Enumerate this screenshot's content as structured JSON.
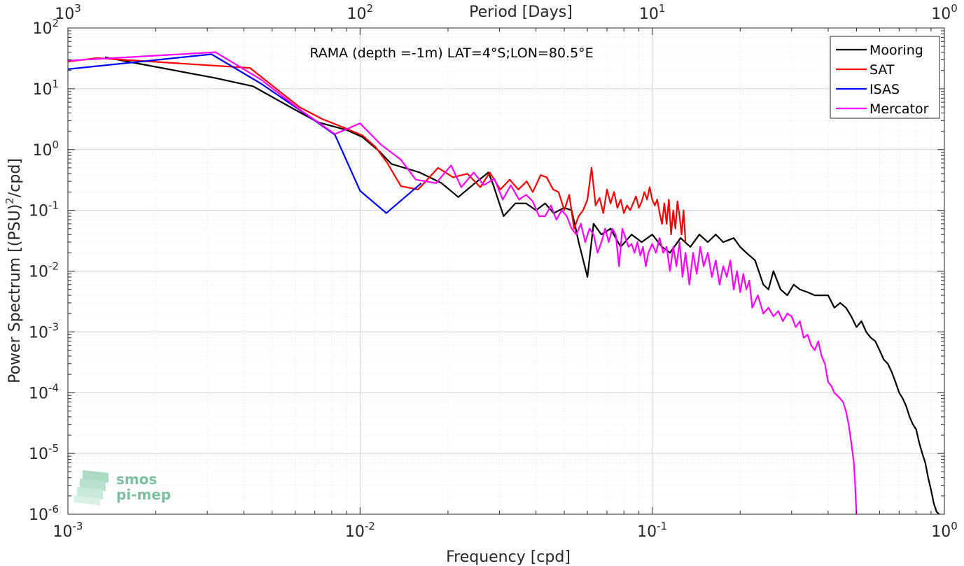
{
  "chart_data": {
    "type": "line",
    "title": "RAMA (depth =-1m) LAT=4°S;LON=80.5°E",
    "xlabel": "Frequency [cpd]",
    "ylabel_main": "Power Spectrum [(PSU)",
    "ylabel_sup": "2",
    "ylabel_tail": "/cpd]",
    "x2label": "Period [Days]",
    "xscale": "log",
    "yscale": "log",
    "xlim": [
      0.001,
      1
    ],
    "ylim": [
      1e-06,
      100
    ],
    "grid": true,
    "legend_position": "top-right",
    "x_ticks": [
      {
        "value": 0.001,
        "base": "10",
        "exp": "-3"
      },
      {
        "value": 0.01,
        "base": "10",
        "exp": "-2"
      },
      {
        "value": 0.1,
        "base": "10",
        "exp": "-1"
      },
      {
        "value": 1,
        "base": "10",
        "exp": "0"
      }
    ],
    "x2_ticks": [
      {
        "value": 0.001,
        "base": "10",
        "exp": "3"
      },
      {
        "value": 0.01,
        "base": "10",
        "exp": "2"
      },
      {
        "value": 0.1,
        "base": "10",
        "exp": "1"
      },
      {
        "value": 1,
        "base": "10",
        "exp": "0"
      }
    ],
    "y_ticks": [
      {
        "value": 100,
        "base": "10",
        "exp": "2"
      },
      {
        "value": 10,
        "base": "10",
        "exp": "1"
      },
      {
        "value": 1,
        "base": "10",
        "exp": "0"
      },
      {
        "value": 0.1,
        "base": "10",
        "exp": "-1"
      },
      {
        "value": 0.01,
        "base": "10",
        "exp": "-2"
      },
      {
        "value": 0.001,
        "base": "10",
        "exp": "-3"
      },
      {
        "value": 0.0001,
        "base": "10",
        "exp": "-4"
      },
      {
        "value": 1e-05,
        "base": "10",
        "exp": "-5"
      },
      {
        "value": 1e-06,
        "base": "10",
        "exp": "-6"
      }
    ],
    "series": [
      {
        "name": "Mooring",
        "color": "#000000",
        "points": [
          [
            0.00134,
            33
          ],
          [
            0.0016,
            28
          ],
          [
            0.0032,
            15
          ],
          [
            0.0043,
            11
          ],
          [
            0.006,
            4.5
          ],
          [
            0.0072,
            2.8
          ],
          [
            0.009,
            2.1
          ],
          [
            0.0102,
            1.6
          ],
          [
            0.0116,
            0.95
          ],
          [
            0.0128,
            0.58
          ],
          [
            0.0142,
            0.5
          ],
          [
            0.016,
            0.42
          ],
          [
            0.019,
            0.28
          ],
          [
            0.0217,
            0.165
          ],
          [
            0.0245,
            0.27
          ],
          [
            0.0275,
            0.42
          ],
          [
            0.0285,
            0.27
          ],
          [
            0.031,
            0.08
          ],
          [
            0.034,
            0.13
          ],
          [
            0.037,
            0.13
          ],
          [
            0.04,
            0.1
          ],
          [
            0.043,
            0.13
          ],
          [
            0.046,
            0.09
          ],
          [
            0.05,
            0.11
          ],
          [
            0.053,
            0.1
          ],
          [
            0.056,
            0.03
          ],
          [
            0.06,
            0.008
          ],
          [
            0.063,
            0.06
          ],
          [
            0.067,
            0.04
          ],
          [
            0.072,
            0.05
          ],
          [
            0.078,
            0.025
          ],
          [
            0.085,
            0.04
          ],
          [
            0.092,
            0.03
          ],
          [
            0.1,
            0.04
          ],
          [
            0.108,
            0.025
          ],
          [
            0.115,
            0.02
          ],
          [
            0.125,
            0.035
          ],
          [
            0.135,
            0.025
          ],
          [
            0.145,
            0.04
          ],
          [
            0.155,
            0.03
          ],
          [
            0.165,
            0.04
          ],
          [
            0.175,
            0.03
          ],
          [
            0.19,
            0.035
          ],
          [
            0.2,
            0.025
          ],
          [
            0.21,
            0.02
          ],
          [
            0.225,
            0.015
          ],
          [
            0.24,
            0.006
          ],
          [
            0.25,
            0.005
          ],
          [
            0.26,
            0.01
          ],
          [
            0.275,
            0.005
          ],
          [
            0.29,
            0.004
          ],
          [
            0.305,
            0.006
          ],
          [
            0.32,
            0.005
          ],
          [
            0.34,
            0.0045
          ],
          [
            0.36,
            0.004
          ],
          [
            0.38,
            0.004
          ],
          [
            0.4,
            0.004
          ],
          [
            0.42,
            0.0025
          ],
          [
            0.44,
            0.003
          ],
          [
            0.46,
            0.0025
          ],
          [
            0.48,
            0.0018
          ],
          [
            0.5,
            0.0012
          ],
          [
            0.52,
            0.0015
          ],
          [
            0.54,
            0.001
          ],
          [
            0.56,
            0.0008
          ],
          [
            0.58,
            0.0007
          ],
          [
            0.6,
            0.0005
          ],
          [
            0.62,
            0.00035
          ],
          [
            0.64,
            0.0003
          ],
          [
            0.66,
            0.00022
          ],
          [
            0.68,
            0.00015
          ],
          [
            0.7,
            0.0001
          ],
          [
            0.72,
            8e-05
          ],
          [
            0.74,
            6e-05
          ],
          [
            0.76,
            4e-05
          ],
          [
            0.78,
            3e-05
          ],
          [
            0.8,
            2.5e-05
          ],
          [
            0.82,
            1.5e-05
          ],
          [
            0.84,
            1e-05
          ],
          [
            0.86,
            7e-06
          ],
          [
            0.88,
            4e-06
          ],
          [
            0.9,
            2.5e-06
          ],
          [
            0.92,
            1.5e-06
          ],
          [
            0.94,
            1.1e-06
          ],
          [
            0.96,
            1e-06
          ]
        ]
      },
      {
        "name": "SAT",
        "color": "#ff0000",
        "points": [
          [
            0.001,
            28
          ],
          [
            0.00126,
            32
          ],
          [
            0.0042,
            22
          ],
          [
            0.0062,
            5
          ],
          [
            0.0074,
            3.2
          ],
          [
            0.009,
            2.2
          ],
          [
            0.0102,
            1.7
          ],
          [
            0.0113,
            1.1
          ],
          [
            0.0124,
            0.6
          ],
          [
            0.0138,
            0.25
          ],
          [
            0.0158,
            0.22
          ],
          [
            0.0185,
            0.5
          ],
          [
            0.0208,
            0.35
          ],
          [
            0.0233,
            0.4
          ],
          [
            0.0258,
            0.24
          ],
          [
            0.0278,
            0.42
          ],
          [
            0.0302,
            0.22
          ],
          [
            0.0325,
            0.32
          ],
          [
            0.0348,
            0.22
          ],
          [
            0.0372,
            0.3
          ],
          [
            0.039,
            0.2
          ],
          [
            0.0415,
            0.38
          ],
          [
            0.0435,
            0.35
          ],
          [
            0.0458,
            0.22
          ],
          [
            0.0478,
            0.2
          ],
          [
            0.05,
            0.1
          ],
          [
            0.052,
            0.18
          ],
          [
            0.054,
            0.05
          ],
          [
            0.056,
            0.08
          ],
          [
            0.058,
            0.1
          ],
          [
            0.06,
            0.15
          ],
          [
            0.062,
            0.5
          ],
          [
            0.064,
            0.12
          ],
          [
            0.066,
            0.16
          ],
          [
            0.068,
            0.09
          ],
          [
            0.07,
            0.22
          ],
          [
            0.072,
            0.13
          ],
          [
            0.074,
            0.2
          ],
          [
            0.076,
            0.11
          ],
          [
            0.078,
            0.15
          ],
          [
            0.08,
            0.09
          ],
          [
            0.082,
            0.12
          ],
          [
            0.084,
            0.1
          ],
          [
            0.086,
            0.13
          ],
          [
            0.088,
            0.17
          ],
          [
            0.09,
            0.11
          ],
          [
            0.092,
            0.14
          ],
          [
            0.094,
            0.2
          ],
          [
            0.096,
            0.15
          ],
          [
            0.098,
            0.24
          ],
          [
            0.1,
            0.15
          ],
          [
            0.102,
            0.12
          ],
          [
            0.104,
            0.15
          ],
          [
            0.106,
            0.09
          ],
          [
            0.108,
            0.06
          ],
          [
            0.11,
            0.13
          ],
          [
            0.112,
            0.06
          ],
          [
            0.114,
            0.15
          ],
          [
            0.116,
            0.04
          ],
          [
            0.118,
            0.1
          ],
          [
            0.12,
            0.05
          ],
          [
            0.122,
            0.14
          ],
          [
            0.124,
            0.08
          ],
          [
            0.126,
            0.04
          ],
          [
            0.128,
            0.1
          ],
          [
            0.13,
            0.03
          ]
        ]
      },
      {
        "name": "ISAS",
        "color": "#0000ff",
        "points": [
          [
            0.001,
            21
          ],
          [
            0.0031,
            37
          ],
          [
            0.0046,
            12
          ],
          [
            0.0062,
            4.5
          ],
          [
            0.0082,
            1.75
          ],
          [
            0.01,
            0.21
          ],
          [
            0.0123,
            0.09
          ],
          [
            0.0162,
            0.28
          ]
        ]
      },
      {
        "name": "Mercator",
        "color": "#ff00ff",
        "points": [
          [
            0.001,
            29
          ],
          [
            0.0032,
            40
          ],
          [
            0.0046,
            14
          ],
          [
            0.0062,
            4.6
          ],
          [
            0.0082,
            1.8
          ],
          [
            0.01,
            2.7
          ],
          [
            0.0118,
            1.2
          ],
          [
            0.0138,
            0.68
          ],
          [
            0.0155,
            0.32
          ],
          [
            0.0182,
            0.28
          ],
          [
            0.0205,
            0.55
          ],
          [
            0.0222,
            0.24
          ],
          [
            0.0245,
            0.42
          ],
          [
            0.0265,
            0.26
          ],
          [
            0.0288,
            0.33
          ],
          [
            0.0308,
            0.15
          ],
          [
            0.0328,
            0.26
          ],
          [
            0.035,
            0.15
          ],
          [
            0.037,
            0.18
          ],
          [
            0.039,
            0.14
          ],
          [
            0.041,
            0.08
          ],
          [
            0.043,
            0.08
          ],
          [
            0.045,
            0.12
          ],
          [
            0.047,
            0.07
          ],
          [
            0.049,
            0.1
          ],
          [
            0.051,
            0.08
          ],
          [
            0.053,
            0.05
          ],
          [
            0.055,
            0.04
          ],
          [
            0.057,
            0.06
          ],
          [
            0.059,
            0.03
          ],
          [
            0.061,
            0.05
          ],
          [
            0.063,
            0.04
          ],
          [
            0.065,
            0.02
          ],
          [
            0.067,
            0.03
          ],
          [
            0.069,
            0.05
          ],
          [
            0.071,
            0.03
          ],
          [
            0.073,
            0.05
          ],
          [
            0.075,
            0.04
          ],
          [
            0.077,
            0.012
          ],
          [
            0.079,
            0.05
          ],
          [
            0.081,
            0.035
          ],
          [
            0.083,
            0.025
          ],
          [
            0.085,
            0.028
          ],
          [
            0.087,
            0.02
          ],
          [
            0.089,
            0.03
          ],
          [
            0.091,
            0.018
          ],
          [
            0.093,
            0.025
          ],
          [
            0.095,
            0.012
          ],
          [
            0.097,
            0.02
          ],
          [
            0.1,
            0.028
          ],
          [
            0.103,
            0.02
          ],
          [
            0.106,
            0.035
          ],
          [
            0.109,
            0.02
          ],
          [
            0.112,
            0.025
          ],
          [
            0.115,
            0.01
          ],
          [
            0.118,
            0.025
          ],
          [
            0.121,
            0.012
          ],
          [
            0.124,
            0.03
          ],
          [
            0.127,
            0.008
          ],
          [
            0.13,
            0.02
          ],
          [
            0.134,
            0.006
          ],
          [
            0.138,
            0.02
          ],
          [
            0.142,
            0.009
          ],
          [
            0.146,
            0.025
          ],
          [
            0.15,
            0.012
          ],
          [
            0.155,
            0.02
          ],
          [
            0.16,
            0.008
          ],
          [
            0.165,
            0.015
          ],
          [
            0.17,
            0.006
          ],
          [
            0.175,
            0.012
          ],
          [
            0.18,
            0.008
          ],
          [
            0.185,
            0.015
          ],
          [
            0.19,
            0.005
          ],
          [
            0.195,
            0.01
          ],
          [
            0.2,
            0.0045
          ],
          [
            0.205,
            0.009
          ],
          [
            0.21,
            0.005
          ],
          [
            0.215,
            0.007
          ],
          [
            0.22,
            0.0025
          ],
          [
            0.23,
            0.004
          ],
          [
            0.24,
            0.002
          ],
          [
            0.25,
            0.0025
          ],
          [
            0.26,
            0.0018
          ],
          [
            0.27,
            0.0022
          ],
          [
            0.28,
            0.0015
          ],
          [
            0.29,
            0.002
          ],
          [
            0.3,
            0.0018
          ],
          [
            0.31,
            0.0012
          ],
          [
            0.32,
            0.0015
          ],
          [
            0.33,
            0.0008
          ],
          [
            0.34,
            0.0009
          ],
          [
            0.35,
            0.0006
          ],
          [
            0.36,
            0.0005
          ],
          [
            0.37,
            0.0007
          ],
          [
            0.38,
            0.0004
          ],
          [
            0.39,
            0.0003
          ],
          [
            0.4,
            0.00015
          ],
          [
            0.41,
            0.00013
          ],
          [
            0.42,
            0.0001
          ],
          [
            0.43,
            9e-05
          ],
          [
            0.44,
            8e-05
          ],
          [
            0.45,
            7e-05
          ],
          [
            0.46,
            5e-05
          ],
          [
            0.47,
            3e-05
          ],
          [
            0.48,
            1.5e-05
          ],
          [
            0.49,
            7e-06
          ],
          [
            0.495,
            3e-06
          ],
          [
            0.5,
            1e-06
          ]
        ]
      }
    ]
  },
  "logo": {
    "line1": "smos",
    "line2": "pi-mep"
  }
}
